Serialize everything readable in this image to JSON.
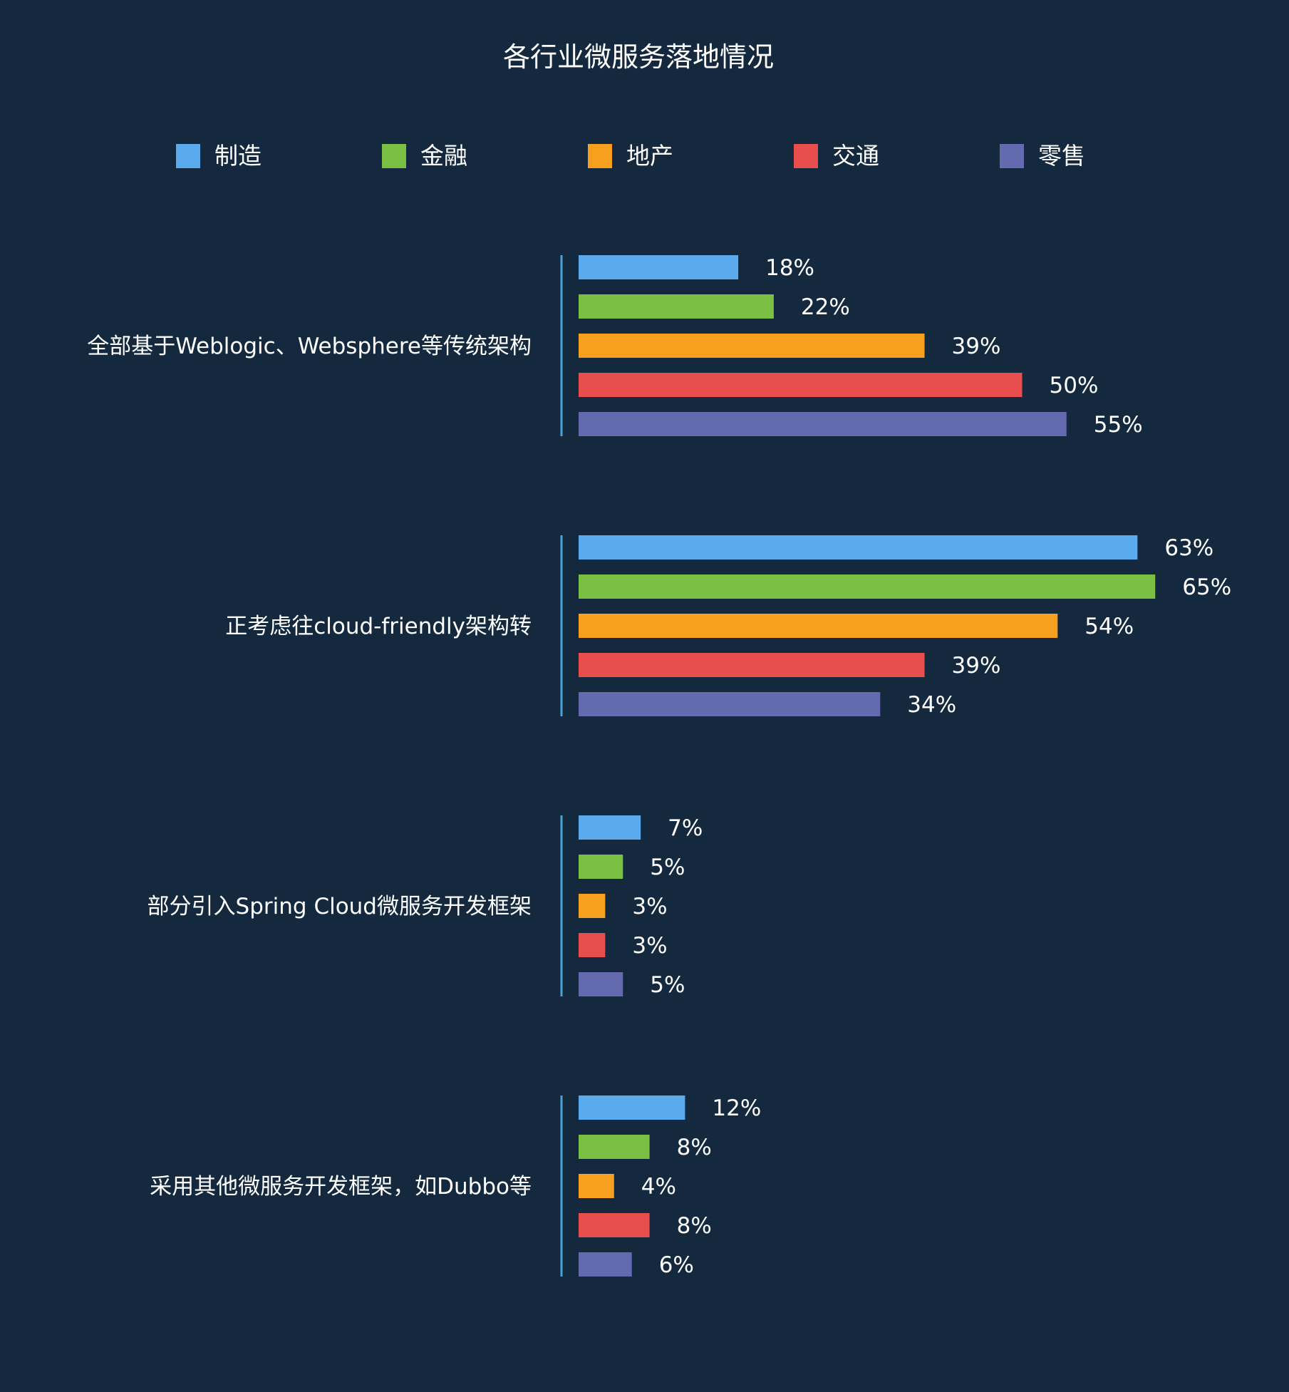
{
  "chart_data": {
    "type": "bar",
    "orientation": "horizontal",
    "title": "各行业微服务落地情况",
    "legend_position": "top",
    "grid": false,
    "xlim": [
      0,
      65
    ],
    "value_suffix": "%",
    "categories": [
      "全部基于Weblogic、Websphere等传统架构",
      "正考虑往cloud-friendly架构转",
      "部分引入Spring Cloud微服务开发框架",
      "采用其他微服务开发框架，如Dubbo等"
    ],
    "series": [
      {
        "name": "制造",
        "color": "#5aabee",
        "values": [
          18,
          63,
          7,
          12
        ]
      },
      {
        "name": "金融",
        "color": "#7ac143",
        "values": [
          22,
          65,
          5,
          8
        ]
      },
      {
        "name": "地产",
        "color": "#f5a01e",
        "values": [
          39,
          54,
          3,
          4
        ]
      },
      {
        "name": "交通",
        "color": "#e94e4f",
        "values": [
          50,
          39,
          3,
          8
        ]
      },
      {
        "name": "零售",
        "color": "#636ab0",
        "values": [
          55,
          34,
          5,
          6
        ]
      }
    ],
    "colors": {
      "background": "#14293e",
      "axis": "#4aa3d8",
      "text": "#ffffff"
    }
  }
}
